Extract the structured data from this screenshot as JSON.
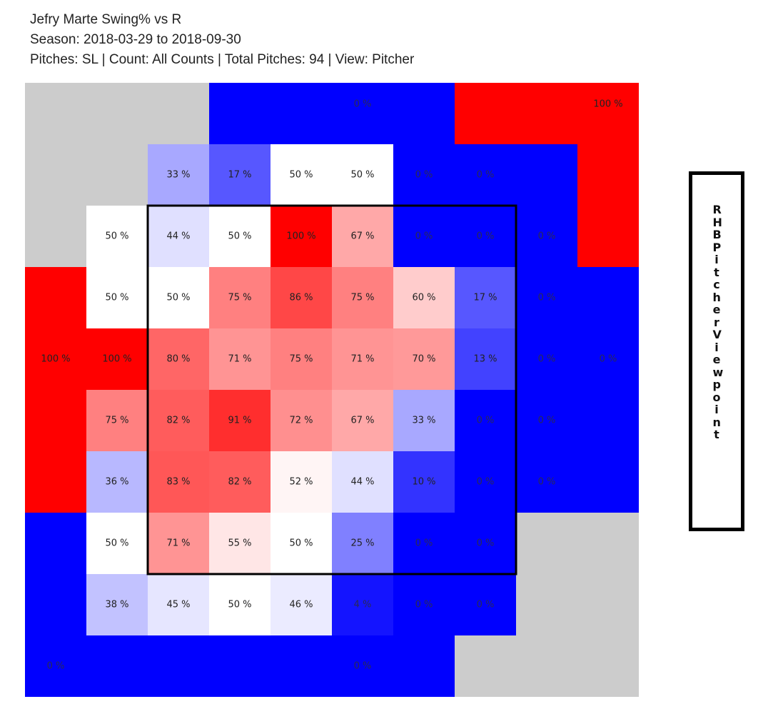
{
  "header": {
    "title": "Jefry Marte Swing% vs R",
    "season": "Season: 2018-03-29 to 2018-09-30",
    "details": "Pitches: SL | Count: All Counts | Total Pitches: 94 | View: Pitcher"
  },
  "side_label": "RHB Pitcher Viewpoint",
  "colors": {
    "high": "#ff0000",
    "mid": "#ffffff",
    "low": "#0000ff",
    "empty": "#cccccc",
    "zone_border": "#000000"
  },
  "chart_data": {
    "type": "heatmap",
    "title": "Jefry Marte Swing% vs R",
    "metric": "Swing%",
    "value_suffix": " %",
    "inner_grid": [
      [
        33,
        17,
        50,
        50,
        0,
        0
      ],
      [
        44,
        50,
        100,
        67,
        0,
        0
      ],
      [
        50,
        75,
        86,
        75,
        60,
        17
      ],
      [
        80,
        71,
        75,
        71,
        70,
        13
      ],
      [
        82,
        91,
        72,
        67,
        33,
        0
      ],
      [
        83,
        82,
        52,
        44,
        10,
        0
      ],
      [
        71,
        55,
        50,
        25,
        0,
        0
      ],
      [
        45,
        50,
        46,
        4,
        0,
        0
      ]
    ],
    "left_column": [
      null,
      50,
      50,
      100,
      75,
      36,
      50,
      38
    ],
    "right_column": [
      null,
      0,
      0,
      0,
      0,
      0,
      null,
      null
    ],
    "outer_regions": [
      {
        "name": "top-left",
        "value": null
      },
      {
        "name": "top-middle",
        "value": 0
      },
      {
        "name": "top-right",
        "value": 100
      },
      {
        "name": "left",
        "value": 100
      },
      {
        "name": "right",
        "value": 0
      },
      {
        "name": "bottom-left",
        "value": 0
      },
      {
        "name": "bottom-middle",
        "value": 0
      },
      {
        "name": "bottom-right",
        "value": null
      }
    ]
  }
}
